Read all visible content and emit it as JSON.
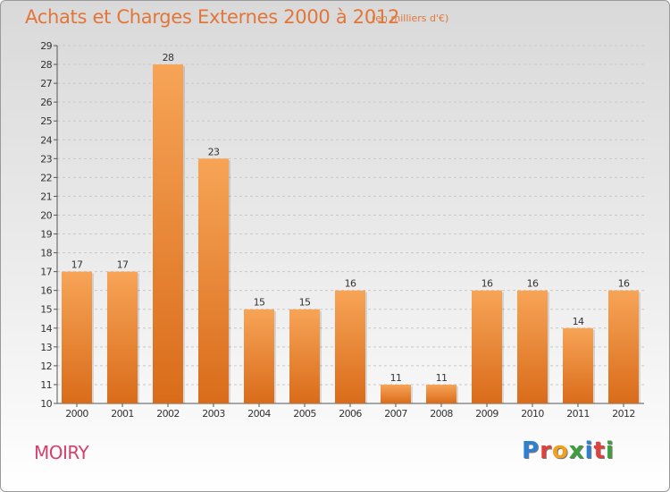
{
  "chart_data": {
    "type": "bar",
    "title": "Achats et Charges Externes 2000 à 2012",
    "subtitle": "(en milliers d'€)",
    "categories": [
      "2000",
      "2001",
      "2002",
      "2003",
      "2004",
      "2005",
      "2006",
      "2007",
      "2008",
      "2009",
      "2010",
      "2011",
      "2012"
    ],
    "values": [
      17,
      17,
      28,
      23,
      15,
      15,
      16,
      11,
      11,
      16,
      16,
      14,
      16
    ],
    "data_labels": [
      "17",
      "17",
      "28",
      "23",
      "15",
      "15",
      "16",
      "11",
      "11",
      "16",
      "16",
      "14",
      "16"
    ],
    "ylim": [
      10,
      29
    ],
    "yticks": [
      "10",
      "11",
      "12",
      "13",
      "14",
      "15",
      "16",
      "17",
      "18",
      "19",
      "20",
      "21",
      "22",
      "23",
      "24",
      "25",
      "26",
      "27",
      "28",
      "29"
    ],
    "grid": true,
    "bar_color": "#e8843a"
  },
  "footer": {
    "commune": "MOIRY",
    "logo_letters": [
      {
        "ch": "P",
        "color": "#2f7fd0"
      },
      {
        "ch": "r",
        "color": "#e0413c"
      },
      {
        "ch": "o",
        "color": "#f0a020"
      },
      {
        "ch": "x",
        "color": "#3c9e3c"
      },
      {
        "ch": "i",
        "color": "#2f7fd0"
      },
      {
        "ch": "t",
        "color": "#e0413c"
      },
      {
        "ch": "i",
        "color": "#3c9e3c"
      }
    ]
  }
}
